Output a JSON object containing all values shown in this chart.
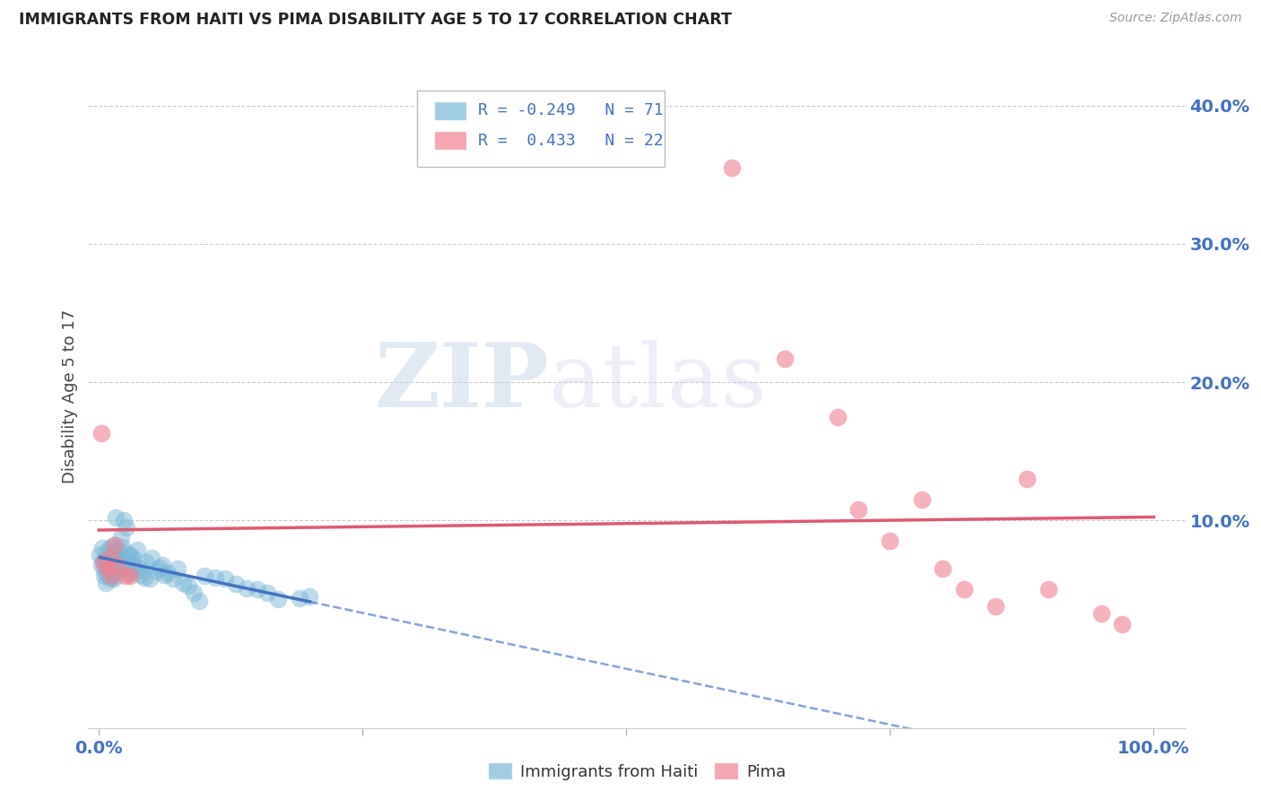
{
  "title": "IMMIGRANTS FROM HAITI VS PIMA DISABILITY AGE 5 TO 17 CORRELATION CHART",
  "source": "Source: ZipAtlas.com",
  "ylabel": "Disability Age 5 to 17",
  "right_ytick_vals": [
    0.4,
    0.3,
    0.2,
    0.1
  ],
  "right_ytick_labels": [
    "40.0%",
    "30.0%",
    "20.0%",
    "10.0%"
  ],
  "legend_haiti": {
    "R": "-0.249",
    "N": "71"
  },
  "legend_pima": {
    "R": "0.433",
    "N": "22"
  },
  "haiti_color": "#7ab8d9",
  "pima_color": "#f08090",
  "haiti_scatter": [
    [
      0.001,
      0.075
    ],
    [
      0.002,
      0.068
    ],
    [
      0.003,
      0.08
    ],
    [
      0.004,
      0.072
    ],
    [
      0.005,
      0.06
    ],
    [
      0.005,
      0.065
    ],
    [
      0.006,
      0.07
    ],
    [
      0.007,
      0.062
    ],
    [
      0.007,
      0.055
    ],
    [
      0.008,
      0.078
    ],
    [
      0.008,
      0.066
    ],
    [
      0.009,
      0.073
    ],
    [
      0.009,
      0.069
    ],
    [
      0.01,
      0.06
    ],
    [
      0.01,
      0.064
    ],
    [
      0.011,
      0.081
    ],
    [
      0.011,
      0.058
    ],
    [
      0.012,
      0.068
    ],
    [
      0.013,
      0.075
    ],
    [
      0.013,
      0.063
    ],
    [
      0.014,
      0.082
    ],
    [
      0.014,
      0.058
    ],
    [
      0.015,
      0.066
    ],
    [
      0.016,
      0.102
    ],
    [
      0.016,
      0.072
    ],
    [
      0.017,
      0.076
    ],
    [
      0.017,
      0.061
    ],
    [
      0.018,
      0.069
    ],
    [
      0.019,
      0.078
    ],
    [
      0.02,
      0.065
    ],
    [
      0.021,
      0.088
    ],
    [
      0.022,
      0.081
    ],
    [
      0.023,
      0.073
    ],
    [
      0.024,
      0.1
    ],
    [
      0.025,
      0.067
    ],
    [
      0.026,
      0.095
    ],
    [
      0.027,
      0.076
    ],
    [
      0.028,
      0.069
    ],
    [
      0.029,
      0.062
    ],
    [
      0.03,
      0.075
    ],
    [
      0.032,
      0.073
    ],
    [
      0.033,
      0.068
    ],
    [
      0.035,
      0.063
    ],
    [
      0.036,
      0.079
    ],
    [
      0.038,
      0.066
    ],
    [
      0.04,
      0.061
    ],
    [
      0.043,
      0.059
    ],
    [
      0.045,
      0.07
    ],
    [
      0.048,
      0.058
    ],
    [
      0.05,
      0.073
    ],
    [
      0.055,
      0.063
    ],
    [
      0.058,
      0.066
    ],
    [
      0.06,
      0.068
    ],
    [
      0.062,
      0.061
    ],
    [
      0.065,
      0.062
    ],
    [
      0.07,
      0.058
    ],
    [
      0.075,
      0.065
    ],
    [
      0.08,
      0.055
    ],
    [
      0.085,
      0.053
    ],
    [
      0.09,
      0.048
    ],
    [
      0.095,
      0.042
    ],
    [
      0.1,
      0.06
    ],
    [
      0.11,
      0.059
    ],
    [
      0.12,
      0.058
    ],
    [
      0.13,
      0.054
    ],
    [
      0.14,
      0.051
    ],
    [
      0.15,
      0.05
    ],
    [
      0.16,
      0.048
    ],
    [
      0.17,
      0.043
    ],
    [
      0.19,
      0.044
    ],
    [
      0.2,
      0.045
    ]
  ],
  "pima_scatter": [
    [
      0.002,
      0.163
    ],
    [
      0.004,
      0.07
    ],
    [
      0.008,
      0.065
    ],
    [
      0.01,
      0.073
    ],
    [
      0.012,
      0.06
    ],
    [
      0.015,
      0.082
    ],
    [
      0.018,
      0.068
    ],
    [
      0.025,
      0.06
    ],
    [
      0.03,
      0.06
    ],
    [
      0.6,
      0.355
    ],
    [
      0.65,
      0.217
    ],
    [
      0.7,
      0.175
    ],
    [
      0.72,
      0.108
    ],
    [
      0.75,
      0.085
    ],
    [
      0.78,
      0.115
    ],
    [
      0.8,
      0.065
    ],
    [
      0.82,
      0.05
    ],
    [
      0.85,
      0.038
    ],
    [
      0.88,
      0.13
    ],
    [
      0.9,
      0.05
    ],
    [
      0.95,
      0.033
    ],
    [
      0.97,
      0.025
    ]
  ],
  "xlim": [
    -0.01,
    1.03
  ],
  "ylim": [
    -0.05,
    0.43
  ],
  "watermark_zip": "ZIP",
  "watermark_atlas": "atlas",
  "background_color": "#ffffff"
}
